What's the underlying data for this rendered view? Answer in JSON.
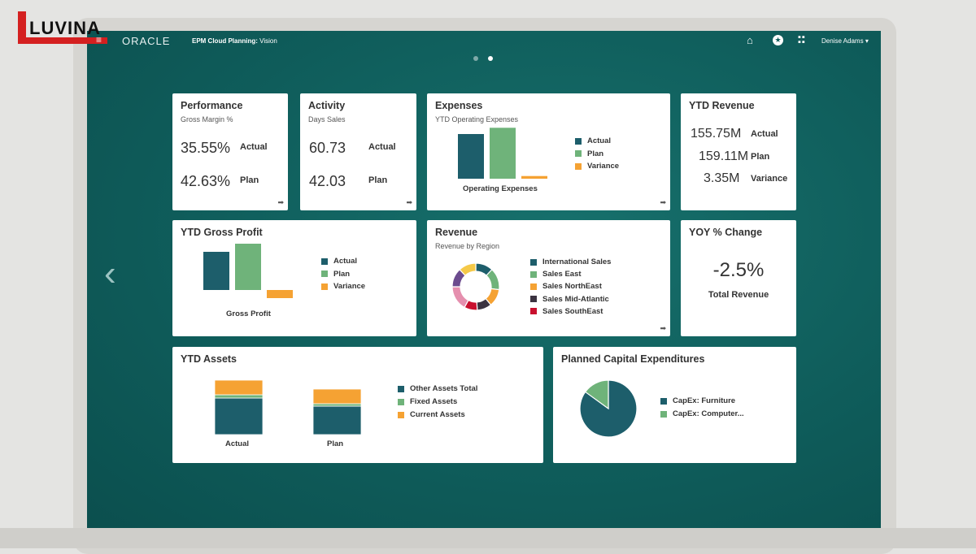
{
  "watermark": "LUVINA",
  "header": {
    "brand": "ORACLE",
    "app_title_bold": "EPM Cloud Planning:",
    "app_title": "Vision",
    "user": "Denise Adams"
  },
  "colors": {
    "teal": "#1d5e6b",
    "green": "#6fb37a",
    "orange": "#f5a233",
    "dark": "#3b3340",
    "red": "#c8102e",
    "pink": "#e58fae",
    "purple": "#6b4b8e",
    "yellow": "#f5c948"
  },
  "cards": {
    "performance": {
      "title": "Performance",
      "subtitle": "Gross Margin %",
      "actual": "35.55%",
      "actual_label": "Actual",
      "plan": "42.63%",
      "plan_label": "Plan"
    },
    "activity": {
      "title": "Activity",
      "subtitle": "Days Sales",
      "actual": "60.73",
      "actual_label": "Actual",
      "plan": "42.03",
      "plan_label": "Plan"
    },
    "expenses": {
      "title": "Expenses",
      "subtitle": "YTD Operating Expenses",
      "xlabel": "Operating Expenses",
      "legend": [
        "Actual",
        "Plan",
        "Variance"
      ]
    },
    "ytd_revenue": {
      "title": "YTD Revenue",
      "rows": [
        {
          "value": "155.75M",
          "label": "Actual"
        },
        {
          "value": "159.11M",
          "label": "Plan"
        },
        {
          "value": "3.35M",
          "label": "Variance"
        }
      ]
    },
    "gross_profit": {
      "title": "YTD Gross Profit",
      "xlabel": "Gross Profit",
      "legend": [
        "Actual",
        "Plan",
        "Variance"
      ]
    },
    "revenue": {
      "title": "Revenue",
      "subtitle": "Revenue by Region",
      "legend": [
        "International Sales",
        "Sales East",
        "Sales NorthEast",
        "Sales Mid-Atlantic",
        "Sales SouthEast"
      ]
    },
    "yoy": {
      "title": "YOY % Change",
      "value": "-2.5%",
      "label": "Total Revenue"
    },
    "assets": {
      "title": "YTD Assets",
      "legend": [
        "Other Assets Total",
        "Fixed Assets",
        "Current Assets"
      ]
    },
    "capex": {
      "title": "Planned Capital Expenditures",
      "legend": [
        "CapEx: Furniture",
        "CapEx: Computer..."
      ]
    }
  },
  "chart_data": [
    {
      "type": "bar",
      "title": "Expenses",
      "categories": [
        "Operating Expenses"
      ],
      "series": [
        {
          "name": "Actual",
          "values": [
            50
          ]
        },
        {
          "name": "Plan",
          "values": [
            57
          ]
        },
        {
          "name": "Variance",
          "values": [
            3
          ]
        }
      ]
    },
    {
      "type": "bar",
      "title": "YTD Gross Profit",
      "categories": [
        "Gross Profit"
      ],
      "series": [
        {
          "name": "Actual",
          "values": [
            47
          ]
        },
        {
          "name": "Plan",
          "values": [
            57
          ]
        },
        {
          "name": "Variance",
          "values": [
            -10
          ]
        }
      ]
    },
    {
      "type": "pie",
      "title": "Revenue by Region",
      "slices": [
        {
          "name": "International Sales",
          "value": 12
        },
        {
          "name": "Sales East",
          "value": 15
        },
        {
          "name": "Sales NorthEast",
          "value": 12
        },
        {
          "name": "Sales Mid-Atlantic",
          "value": 10
        },
        {
          "name": "Sales SouthEast",
          "value": 9
        },
        {
          "name": "",
          "value": 17
        },
        {
          "name": "",
          "value": 13
        },
        {
          "name": "",
          "value": 12
        }
      ]
    },
    {
      "type": "bar",
      "title": "YTD Assets",
      "stacked": true,
      "categories": [
        "Actual",
        "Plan"
      ],
      "series": [
        {
          "name": "Other Assets Total",
          "values": [
            45,
            35
          ]
        },
        {
          "name": "Fixed Assets",
          "values": [
            4,
            3
          ]
        },
        {
          "name": "Current Assets",
          "values": [
            18,
            18
          ]
        }
      ]
    },
    {
      "type": "pie",
      "title": "Planned Capital Expenditures",
      "slices": [
        {
          "name": "CapEx: Furniture",
          "value": 85
        },
        {
          "name": "CapEx: Computer...",
          "value": 15
        }
      ]
    }
  ]
}
